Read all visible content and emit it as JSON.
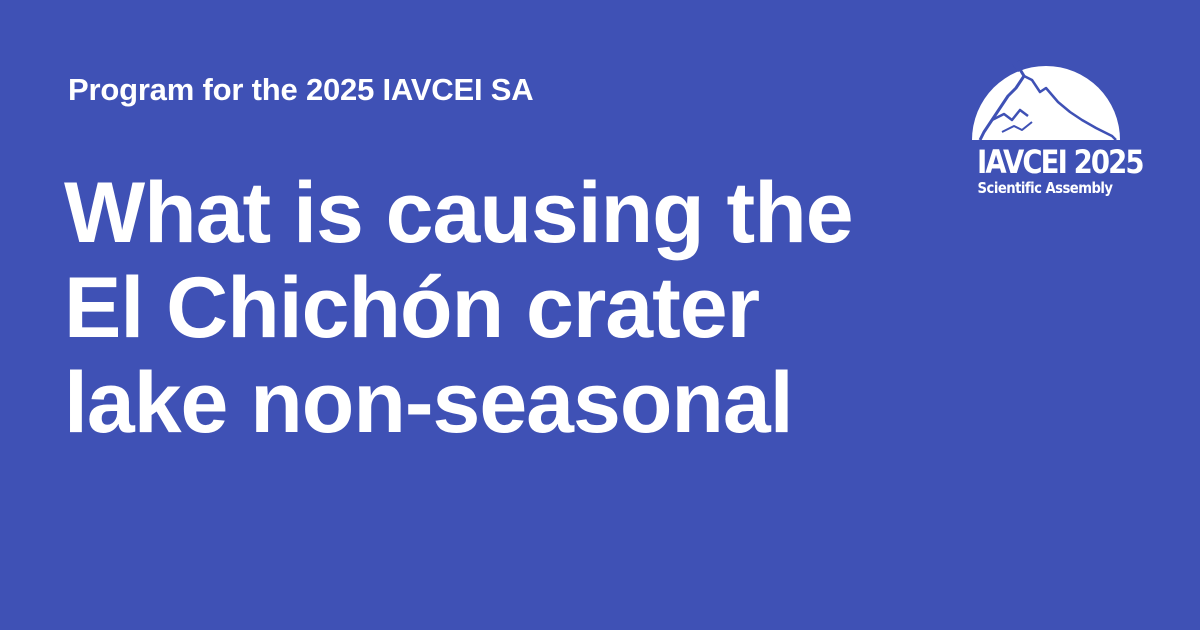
{
  "background_color": "#3f51b5",
  "text_color": "#ffffff",
  "eyebrow": "Program for the 2025 IAVCEI SA",
  "headline": {
    "lines": [
      "What is causing the",
      "El Chichón crater",
      "lake non-seasonal"
    ]
  },
  "logo": {
    "icon": "volcano-dome-icon",
    "title": "IAVCEI 2025",
    "subtitle": "Scientific Assembly"
  }
}
